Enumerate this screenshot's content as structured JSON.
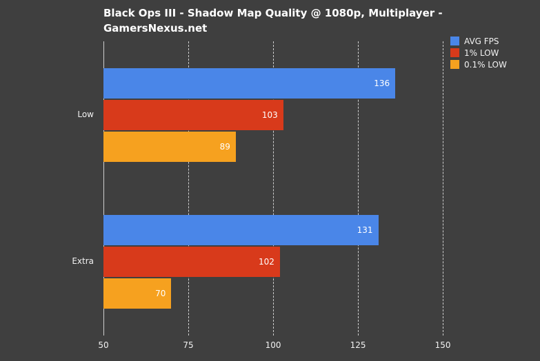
{
  "header": {
    "title_line1": "Black Ops III - Shadow Map Quality @ 1080p, Multiplayer -",
    "title_line2": "GamersNexus.net"
  },
  "chart_data": {
    "type": "bar",
    "orientation": "horizontal",
    "title": "Black Ops III - Shadow Map Quality @ 1080p, Multiplayer - GamersNexus.net",
    "categories": [
      "Low",
      "Extra"
    ],
    "series": [
      {
        "name": "AVG FPS",
        "color": "#4a86e8",
        "values": [
          136,
          131
        ]
      },
      {
        "name": "1% LOW",
        "color": "#d83a1b",
        "values": [
          103,
          102
        ]
      },
      {
        "name": "0.1% LOW",
        "color": "#f6a11f",
        "values": [
          89,
          70
        ]
      }
    ],
    "xlim": [
      50,
      176
    ],
    "xticks": [
      50,
      75,
      100,
      125,
      150
    ],
    "grid": true,
    "legend_position": "top-right",
    "value_label_position": "inside-end"
  },
  "colors": {
    "background": "#3f3f3f",
    "text": "#f2f2f2",
    "gridline": "#cfcfcf",
    "bar_label_text": "#ffffff"
  }
}
